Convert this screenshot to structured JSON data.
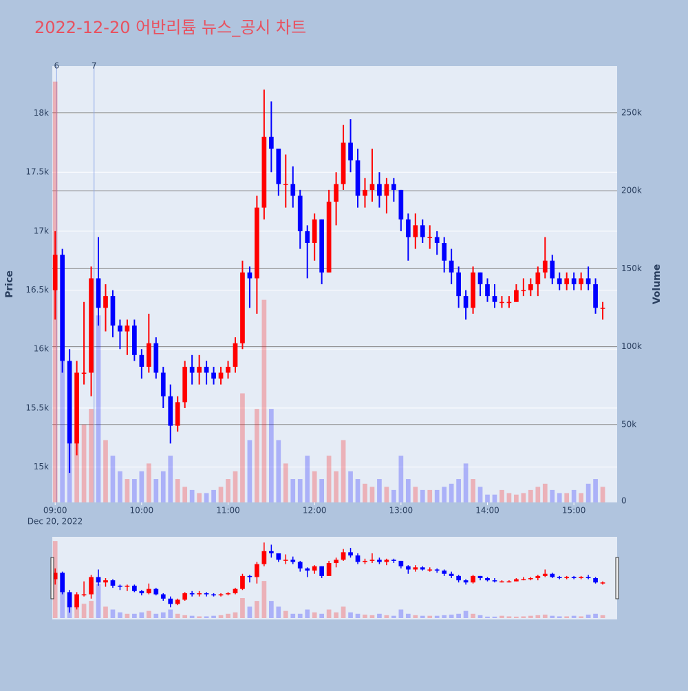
{
  "chart_data": {
    "type": "candlestick",
    "title": "2022-12-20 어반리튬 뉴스_공시 차트",
    "y_title": "Price",
    "y2_title": "Volume",
    "x_date_label": "Dec 20, 2022",
    "increasing_color": "#ff0000",
    "decreasing_color": "#0000ff",
    "xlim": [
      "2022-12-20 08:58",
      "2022-12-20 15:30"
    ],
    "xticks": [
      {
        "value": "2022-12-20 09:00",
        "label": "09:00"
      },
      {
        "value": "2022-12-20 10:00",
        "label": "10:00"
      },
      {
        "value": "2022-12-20 11:00",
        "label": "11:00"
      },
      {
        "value": "2022-12-20 12:00",
        "label": "12:00"
      },
      {
        "value": "2022-12-20 13:00",
        "label": "13:00"
      },
      {
        "value": "2022-12-20 14:00",
        "label": "14:00"
      },
      {
        "value": "2022-12-20 15:00",
        "label": "15:00"
      }
    ],
    "ylim": [
      14700,
      18400
    ],
    "yticks": [
      {
        "value": 15000,
        "label": "15k"
      },
      {
        "value": 15500,
        "label": "15.5k"
      },
      {
        "value": 16000,
        "label": "16k"
      },
      {
        "value": 16500,
        "label": "16.5k"
      },
      {
        "value": 17000,
        "label": "17k"
      },
      {
        "value": 17500,
        "label": "17.5k"
      },
      {
        "value": 18000,
        "label": "18k"
      }
    ],
    "y2lim": [
      0,
      280000
    ],
    "y2ticks": [
      0,
      {
        "value": 50000,
        "label": "50k"
      },
      {
        "value": 100000,
        "label": "100k"
      },
      {
        "value": 150000,
        "label": "150k"
      },
      {
        "value": 200000,
        "label": "200k"
      },
      {
        "value": 250000,
        "label": "250k"
      }
    ],
    "annotations": [
      {
        "x": "2022-12-20 09:01",
        "label": "6"
      },
      {
        "x": "2022-12-20 09:27",
        "label": "7"
      }
    ],
    "x": [
      "2022-12-20 09:00",
      "2022-12-20 09:05",
      "2022-12-20 09:10",
      "2022-12-20 09:15",
      "2022-12-20 09:20",
      "2022-12-20 09:25",
      "2022-12-20 09:30",
      "2022-12-20 09:35",
      "2022-12-20 09:40",
      "2022-12-20 09:45",
      "2022-12-20 09:50",
      "2022-12-20 09:55",
      "2022-12-20 10:00",
      "2022-12-20 10:05",
      "2022-12-20 10:10",
      "2022-12-20 10:15",
      "2022-12-20 10:20",
      "2022-12-20 10:25",
      "2022-12-20 10:30",
      "2022-12-20 10:35",
      "2022-12-20 10:40",
      "2022-12-20 10:45",
      "2022-12-20 10:50",
      "2022-12-20 10:55",
      "2022-12-20 11:00",
      "2022-12-20 11:05",
      "2022-12-20 11:10",
      "2022-12-20 11:15",
      "2022-12-20 11:20",
      "2022-12-20 11:25",
      "2022-12-20 11:30",
      "2022-12-20 11:35",
      "2022-12-20 11:40",
      "2022-12-20 11:45",
      "2022-12-20 11:50",
      "2022-12-20 11:55",
      "2022-12-20 12:00",
      "2022-12-20 12:05",
      "2022-12-20 12:10",
      "2022-12-20 12:15",
      "2022-12-20 12:20",
      "2022-12-20 12:25",
      "2022-12-20 12:30",
      "2022-12-20 12:35",
      "2022-12-20 12:40",
      "2022-12-20 12:45",
      "2022-12-20 12:50",
      "2022-12-20 12:55",
      "2022-12-20 13:00",
      "2022-12-20 13:05",
      "2022-12-20 13:10",
      "2022-12-20 13:15",
      "2022-12-20 13:20",
      "2022-12-20 13:25",
      "2022-12-20 13:30",
      "2022-12-20 13:35",
      "2022-12-20 13:40",
      "2022-12-20 13:45",
      "2022-12-20 13:50",
      "2022-12-20 13:55",
      "2022-12-20 14:00",
      "2022-12-20 14:05",
      "2022-12-20 14:10",
      "2022-12-20 14:15",
      "2022-12-20 14:20",
      "2022-12-20 14:25",
      "2022-12-20 14:30",
      "2022-12-20 14:35",
      "2022-12-20 14:40",
      "2022-12-20 14:45",
      "2022-12-20 14:50",
      "2022-12-20 14:55",
      "2022-12-20 15:00",
      "2022-12-20 15:05",
      "2022-12-20 15:10",
      "2022-12-20 15:15",
      "2022-12-20 15:20"
    ],
    "open": [
      16500,
      16800,
      15900,
      15200,
      15800,
      15800,
      16600,
      16350,
      16450,
      16200,
      16150,
      16200,
      15950,
      15850,
      16050,
      15800,
      15600,
      15350,
      15550,
      15850,
      15800,
      15850,
      15800,
      15750,
      15800,
      15850,
      16050,
      16650,
      16600,
      17200,
      17800,
      17700,
      17400,
      17400,
      17300,
      17000,
      16900,
      17100,
      16650,
      17250,
      17400,
      17750,
      17600,
      17300,
      17350,
      17400,
      17300,
      17400,
      17350,
      17100,
      16950,
      17050,
      16950,
      16950,
      16900,
      16750,
      16650,
      16450,
      16350,
      16650,
      16550,
      16450,
      16400,
      16400,
      16400,
      16500,
      16500,
      16550,
      16650,
      16750,
      16600,
      16550,
      16600,
      16550,
      16600,
      16550,
      16350
    ],
    "high": [
      17000,
      16850,
      16000,
      15900,
      16400,
      16700,
      16950,
      16550,
      16500,
      16250,
      16250,
      16250,
      16000,
      16300,
      16100,
      15850,
      15700,
      15600,
      15900,
      15950,
      15950,
      15900,
      15850,
      15850,
      15900,
      16100,
      16750,
      16700,
      17300,
      18200,
      18100,
      17700,
      17650,
      17550,
      17350,
      17050,
      17150,
      17100,
      17350,
      17500,
      17900,
      17950,
      17700,
      17450,
      17700,
      17500,
      17450,
      17450,
      17350,
      17150,
      17150,
      17100,
      17050,
      17000,
      16950,
      16850,
      16700,
      16500,
      16700,
      16650,
      16600,
      16550,
      16450,
      16450,
      16550,
      16600,
      16600,
      16700,
      16950,
      16800,
      16650,
      16650,
      16650,
      16650,
      16700,
      16600,
      16400
    ],
    "low": [
      16250,
      15800,
      14950,
      15100,
      15700,
      15600,
      16200,
      16150,
      16100,
      16000,
      15950,
      15900,
      15750,
      15800,
      15750,
      15500,
      15200,
      15300,
      15500,
      15700,
      15700,
      15700,
      15700,
      15700,
      15750,
      15800,
      16000,
      16350,
      16300,
      17100,
      17500,
      17300,
      17200,
      17200,
      16850,
      16600,
      16750,
      16550,
      16650,
      17050,
      17350,
      17500,
      17200,
      17200,
      17250,
      17200,
      17150,
      17250,
      17000,
      16750,
      16850,
      16900,
      16850,
      16800,
      16650,
      16550,
      16350,
      16250,
      16300,
      16450,
      16400,
      16350,
      16350,
      16350,
      16400,
      16450,
      16450,
      16450,
      16600,
      16550,
      16500,
      16500,
      16500,
      16500,
      16500,
      16300,
      16250
    ],
    "close": [
      16800,
      15900,
      15200,
      15800,
      15800,
      16600,
      16350,
      16450,
      16200,
      16150,
      16200,
      15950,
      15850,
      16050,
      15800,
      15600,
      15350,
      15550,
      15850,
      15800,
      15850,
      15800,
      15750,
      15800,
      15850,
      16050,
      16650,
      16600,
      17200,
      17800,
      17700,
      17400,
      17400,
      17300,
      17000,
      16900,
      17100,
      16650,
      17250,
      17400,
      17750,
      17600,
      17300,
      17350,
      17400,
      17300,
      17400,
      17350,
      17100,
      16950,
      17050,
      16950,
      16950,
      16900,
      16750,
      16650,
      16450,
      16350,
      16650,
      16550,
      16450,
      16400,
      16400,
      16400,
      16500,
      16500,
      16550,
      16650,
      16750,
      16600,
      16550,
      16600,
      16550,
      16600,
      16550,
      16350,
      16350
    ],
    "volume": [
      270000,
      100000,
      60000,
      50000,
      50000,
      60000,
      120000,
      40000,
      30000,
      20000,
      15000,
      15000,
      20000,
      25000,
      15000,
      20000,
      30000,
      15000,
      10000,
      8000,
      6000,
      6000,
      8000,
      10000,
      15000,
      20000,
      70000,
      40000,
      60000,
      130000,
      60000,
      40000,
      25000,
      15000,
      15000,
      30000,
      20000,
      15000,
      30000,
      20000,
      40000,
      20000,
      15000,
      12000,
      10000,
      15000,
      10000,
      8000,
      30000,
      15000,
      10000,
      8000,
      8000,
      8000,
      10000,
      12000,
      15000,
      25000,
      15000,
      10000,
      5000,
      5000,
      8000,
      6000,
      5000,
      6000,
      8000,
      10000,
      12000,
      8000,
      6000,
      6000,
      8000,
      6000,
      12000,
      15000,
      10000
    ]
  }
}
